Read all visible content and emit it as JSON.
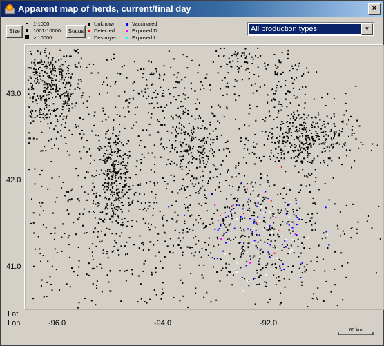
{
  "window": {
    "title": "Apparent map of herds, current/final day",
    "close_glyph": "×"
  },
  "toolbar": {
    "size_button": "Size",
    "status_button": "Status",
    "size_legend": [
      "1-1000",
      "1001-10000",
      "> 10000"
    ],
    "status_legend": [
      {
        "label": "Unknown",
        "color": "#000000"
      },
      {
        "label": "Detected",
        "color": "#ff0000"
      },
      {
        "label": "Destroyed",
        "color": "#ffffff"
      },
      {
        "label": "Vaccinated",
        "color": "#0000ff"
      },
      {
        "label": "Exposed D",
        "color": "#ff00ff"
      },
      {
        "label": "Exposed I",
        "color": "#00ffff"
      }
    ]
  },
  "production_select": {
    "value": "All production types",
    "icon": "chevron-down-icon"
  },
  "axes": {
    "lat_label": "Lat",
    "lon_label": "Lon",
    "lat_ticks": [
      "43.0",
      "42.0",
      "41.0"
    ],
    "lon_ticks": [
      "-96.0",
      "-94.0",
      "-92.0"
    ]
  },
  "scale_bar": {
    "label": "60 km"
  },
  "map": {
    "background": "#d4d0c8",
    "clusters": [
      {
        "lon": -96.2,
        "lat": 43.1,
        "n": 420,
        "spread": [
          0.35,
          0.28
        ]
      },
      {
        "lon": -94.95,
        "lat": 42.05,
        "n": 280,
        "spread": [
          0.18,
          0.3
        ]
      },
      {
        "lon": -94.2,
        "lat": 43.05,
        "n": 140,
        "spread": [
          0.45,
          0.2
        ]
      },
      {
        "lon": -93.4,
        "lat": 42.4,
        "n": 200,
        "spread": [
          0.35,
          0.22
        ]
      },
      {
        "lon": -92.5,
        "lat": 43.4,
        "n": 120,
        "spread": [
          0.35,
          0.18
        ]
      },
      {
        "lon": -91.3,
        "lat": 42.5,
        "n": 320,
        "spread": [
          0.45,
          0.18
        ]
      },
      {
        "lon": -91.8,
        "lat": 42.9,
        "n": 100,
        "spread": [
          0.25,
          0.35
        ]
      },
      {
        "lon": -93.5,
        "lat": 41.6,
        "n": 380,
        "spread": [
          1.6,
          0.6
        ]
      },
      {
        "lon": -95.4,
        "lat": 41.7,
        "n": 220,
        "spread": [
          0.9,
          0.7
        ]
      },
      {
        "lon": -92.3,
        "lat": 41.4,
        "n": 260,
        "spread": [
          0.7,
          0.45
        ]
      }
    ],
    "status_points": {
      "vaccinated": {
        "color": "#0000ff",
        "n": 70,
        "center": [
          -92.3,
          41.45
        ],
        "spread": [
          0.55,
          0.3
        ]
      },
      "destroyed": {
        "color": "#ffffff",
        "n": 55,
        "center": [
          -92.0,
          41.45
        ],
        "spread": [
          0.45,
          0.3
        ]
      },
      "detected": {
        "color": "#ff0000",
        "n": 8,
        "center": [
          -92.2,
          41.6
        ],
        "spread": [
          0.5,
          0.3
        ]
      },
      "exposed_d": {
        "color": "#ff00ff",
        "n": 10,
        "center": [
          -92.4,
          41.4
        ],
        "spread": [
          0.5,
          0.25
        ]
      }
    }
  }
}
